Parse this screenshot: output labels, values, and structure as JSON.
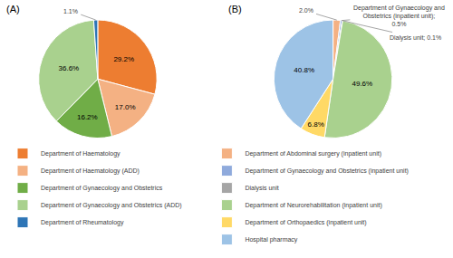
{
  "chart_data": [
    {
      "type": "pie",
      "title": "(A)",
      "categories": [
        "Department of Haematology",
        "Department of Haematology (ADD)",
        "Department of Gynaecology and Obstetrics",
        "Department of Gynaecology and Obstetrics (ADD)",
        "Department of Rheumatology"
      ],
      "values": [
        29.2,
        17.0,
        16.2,
        36.6,
        1.1
      ],
      "value_labels": [
        "29.2%",
        "17.0%",
        "16.2%",
        "36.6%",
        "1.1%"
      ],
      "colors": [
        "#ED7D31",
        "#F4B183",
        "#70AD47",
        "#A9D18E",
        "#2E75B6"
      ],
      "data_labels": true,
      "legend": "bottom"
    },
    {
      "type": "pie",
      "title": "(B)",
      "categories": [
        "Department of Abdominal surgery (inpatient unit)",
        "Department of Gynaecology and Obstetrics (inpatient unit)",
        "Dialysis unit",
        "Department of Neurorehabilitation (inpatient unit)",
        "Department of Orthopaedics (inpatient unit)",
        "Hospital pharmacy"
      ],
      "values": [
        2.0,
        0.5,
        0.1,
        49.6,
        6.8,
        40.8
      ],
      "value_labels": [
        "2.0%",
        "Department of Gynaecology and Obstetrics (inpatient unit); 0.5%",
        "Dialysis unit; 0.1%",
        "49.6%",
        "6.8%",
        "40.8%"
      ],
      "colors": [
        "#F4B183",
        "#8FAADC",
        "#A5A5A5",
        "#A9D18E",
        "#FFD966",
        "#9DC3E6"
      ],
      "data_labels": true,
      "legend": "bottom"
    }
  ]
}
